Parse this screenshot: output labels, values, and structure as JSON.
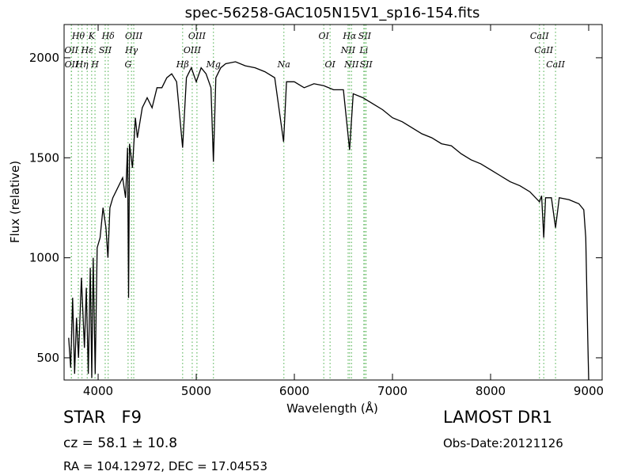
{
  "chart_data": {
    "type": "line",
    "title": "spec-56258-GAC105N15V1_sp16-154.fits",
    "x_label": "Wavelength (Å)",
    "y_label": "Flux (relative)",
    "xlim": [
      3653,
      9137
    ],
    "ylim": [
      389,
      2166
    ],
    "xticks": [
      4000,
      5000,
      6000,
      7000,
      8000,
      9000
    ],
    "yticks": [
      500,
      1000,
      1500,
      2000
    ],
    "x": [
      3700,
      3720,
      3740,
      3760,
      3780,
      3800,
      3830,
      3860,
      3880,
      3900,
      3920,
      3935,
      3950,
      3970,
      3990,
      4020,
      4050,
      4080,
      4100,
      4120,
      4150,
      4200,
      4250,
      4280,
      4300,
      4310,
      4320,
      4350,
      4380,
      4400,
      4450,
      4500,
      4550,
      4600,
      4650,
      4700,
      4750,
      4800,
      4861,
      4900,
      4950,
      5000,
      5050,
      5100,
      5150,
      5175,
      5200,
      5250,
      5300,
      5400,
      5500,
      5600,
      5700,
      5800,
      5890,
      5920,
      6000,
      6100,
      6200,
      6300,
      6400,
      6500,
      6563,
      6600,
      6700,
      6800,
      6900,
      7000,
      7100,
      7200,
      7300,
      7400,
      7500,
      7600,
      7700,
      7800,
      7900,
      8000,
      8100,
      8200,
      8300,
      8400,
      8498,
      8520,
      8542,
      8560,
      8620,
      8662,
      8700,
      8800,
      8900,
      8950,
      8970,
      8990,
      9000
    ],
    "series": [
      {
        "name": "flux",
        "color": "#000000",
        "values": [
          600,
          450,
          800,
          420,
          700,
          500,
          900,
          550,
          850,
          420,
          950,
          400,
          1000,
          420,
          1050,
          1100,
          1250,
          1150,
          1000,
          1250,
          1300,
          1350,
          1400,
          1300,
          1550,
          800,
          1570,
          1450,
          1700,
          1600,
          1750,
          1800,
          1750,
          1850,
          1850,
          1900,
          1920,
          1880,
          1550,
          1900,
          1950,
          1880,
          1950,
          1920,
          1850,
          1480,
          1900,
          1950,
          1970,
          1980,
          1960,
          1950,
          1930,
          1900,
          1580,
          1880,
          1880,
          1850,
          1870,
          1860,
          1840,
          1840,
          1540,
          1820,
          1800,
          1770,
          1740,
          1700,
          1680,
          1650,
          1620,
          1600,
          1570,
          1560,
          1520,
          1490,
          1470,
          1440,
          1410,
          1380,
          1360,
          1330,
          1280,
          1310,
          1100,
          1300,
          1300,
          1150,
          1300,
          1290,
          1270,
          1240,
          1100,
          600,
          389
        ]
      }
    ],
    "line_color": "#66bb66",
    "line_rows": [
      [
        {
          "label": "Hθ",
          "wavelength": 3798
        },
        {
          "label": "K",
          "wavelength": 3934
        },
        {
          "label": "Hδ",
          "wavelength": 4102
        },
        {
          "label": "OIII",
          "wavelength": 4363
        },
        {
          "label": "OIII",
          "wavelength": 5007
        },
        {
          "label": "OI",
          "wavelength": 6300
        },
        {
          "label": "Hα",
          "wavelength": 6563
        },
        {
          "label": "SII",
          "wavelength": 6717
        },
        {
          "label": "CaII",
          "wavelength": 8498
        }
      ],
      [
        {
          "label": "OII",
          "wavelength": 3727
        },
        {
          "label": "Hε",
          "wavelength": 3889
        },
        {
          "label": "SII",
          "wavelength": 4072
        },
        {
          "label": "Hγ",
          "wavelength": 4340
        },
        {
          "label": "OIII",
          "wavelength": 4959
        },
        {
          "label": "NII",
          "wavelength": 6548
        },
        {
          "label": "Li",
          "wavelength": 6708
        },
        {
          "label": "CaII",
          "wavelength": 8542
        }
      ],
      [
        {
          "label": "OII",
          "wavelength": 3729
        },
        {
          "label": "Hη",
          "wavelength": 3835
        },
        {
          "label": "H",
          "wavelength": 3968
        },
        {
          "label": "G",
          "wavelength": 4305
        },
        {
          "label": "Hβ",
          "wavelength": 4861
        },
        {
          "label": "Mg",
          "wavelength": 5175
        },
        {
          "label": "Na",
          "wavelength": 5893
        },
        {
          "label": "OI",
          "wavelength": 6364
        },
        {
          "label": "NII",
          "wavelength": 6583
        },
        {
          "label": "SII",
          "wavelength": 6731
        },
        {
          "label": "CaII",
          "wavelength": 8662
        }
      ]
    ],
    "footer": {
      "class": "STAR   F9",
      "cz": "cz = 58.1 ± 10.8",
      "coords": "RA = 104.12972, DEC = 17.04553",
      "release": "LAMOST DR1",
      "obs_date": "Obs-Date:20121126"
    }
  }
}
